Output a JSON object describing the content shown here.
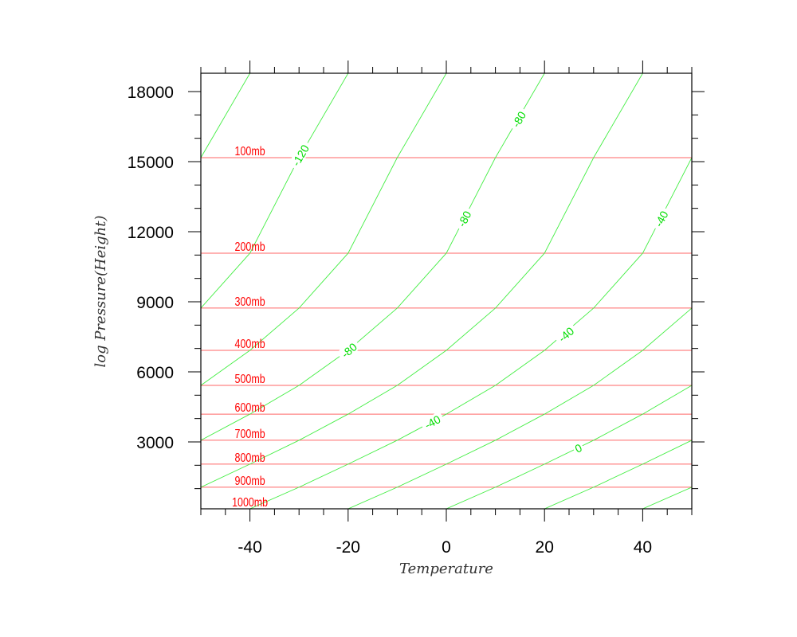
{
  "chart_data": {
    "type": "line",
    "title": "",
    "xlabel": "Temperature",
    "ylabel": "log Pressure(Height)",
    "xlim": [
      -50,
      50
    ],
    "ylim": [
      136,
      18784
    ],
    "xticks": [
      -40,
      -20,
      0,
      20,
      40
    ],
    "xtick_labels": [
      "-40",
      "-20",
      "0",
      "20",
      "40"
    ],
    "x_minor_step": 5,
    "yticks": [
      3000,
      6000,
      9000,
      12000,
      15000,
      18000
    ],
    "ytick_labels": [
      "3000",
      "6000",
      "9000",
      "12000",
      "15000",
      "18000"
    ],
    "y_minor_step": 1000,
    "grid": false,
    "pressure_levels": [
      {
        "label": "100mb",
        "height": 15170
      },
      {
        "label": "200mb",
        "height": 11080
      },
      {
        "label": "300mb",
        "height": 8730
      },
      {
        "label": "400mb",
        "height": 6920
      },
      {
        "label": "500mb",
        "height": 5420
      },
      {
        "label": "600mb",
        "height": 4190
      },
      {
        "label": "700mb",
        "height": 3070
      },
      {
        "label": "800mb",
        "height": 2050
      },
      {
        "label": "900mb",
        "height": 1060
      },
      {
        "label": "1000mb",
        "height": 136
      }
    ],
    "skew_lines": {
      "top_height": 18784,
      "top_temps": [
        -60,
        -40,
        -20,
        0,
        20,
        40,
        60,
        80,
        100,
        120,
        140,
        160
      ],
      "temp_step_per_level": -10
    },
    "line_labels": [
      {
        "text": "-120",
        "line_top_temp": -20,
        "t": -29.7,
        "h": 15270
      },
      {
        "text": "-80",
        "line_top_temp": 20,
        "t": 14.8,
        "h": 16810
      },
      {
        "text": "-80",
        "line_top_temp": 20,
        "t": 3.7,
        "h": 12550
      },
      {
        "text": "-40",
        "line_top_temp": 60,
        "t": 43.8,
        "h": 12550
      },
      {
        "text": "-40",
        "line_top_temp": 60,
        "t": 24.4,
        "h": 7600
      },
      {
        "text": "-80",
        "line_top_temp": 20,
        "t": -19.8,
        "h": 6920
      },
      {
        "text": "-40",
        "line_top_temp": 60,
        "t": -2.8,
        "h": 3850
      },
      {
        "text": "0",
        "line_top_temp": 100,
        "t": 26.9,
        "h": 2730
      }
    ],
    "colors": {
      "pressure": "#ff6666",
      "lines": "#44ee44",
      "labels": "#00dd00",
      "pressure_labels": "#ff0000"
    }
  }
}
